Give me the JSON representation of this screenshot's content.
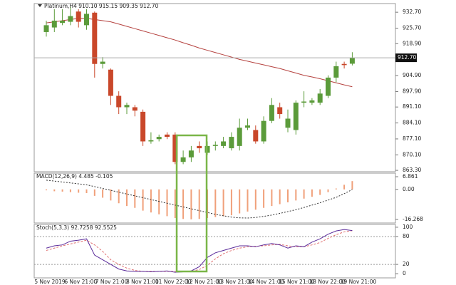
{
  "chart_data": [
    {
      "type": "candlestick",
      "title": "Platinum,H4 910.10 915.15 909.35 912.70",
      "open": [
        924,
        926,
        928,
        928.5,
        933,
        927,
        932.5,
        910,
        907.5,
        896,
        891,
        891,
        889,
        876,
        877,
        879,
        879,
        867,
        869,
        874,
        871,
        874,
        874,
        873,
        874,
        882,
        881,
        876,
        885,
        891,
        882,
        881,
        893,
        893,
        893,
        896,
        904,
        910,
        910.1
      ],
      "high": [
        929,
        934,
        934,
        935,
        934,
        934,
        933,
        913,
        908,
        898,
        893,
        892,
        890,
        880,
        879,
        880,
        880,
        872,
        874,
        876,
        876,
        876,
        878,
        880,
        886,
        886,
        883,
        887,
        895,
        893,
        890,
        894,
        898,
        895,
        899,
        905,
        911,
        911,
        915.15
      ],
      "low": [
        922,
        924,
        927,
        927,
        926,
        925,
        904,
        908,
        892,
        888,
        888,
        887,
        874,
        875,
        876,
        877,
        866,
        866,
        867,
        871,
        870,
        872,
        873,
        872,
        872,
        881,
        875,
        875,
        884,
        886,
        880,
        879,
        891,
        892,
        892,
        895,
        902,
        908,
        909.35
      ],
      "close": [
        927,
        929,
        929,
        931,
        928.5,
        932,
        910,
        911,
        896,
        891,
        892,
        889.5,
        876,
        876.5,
        878,
        878,
        867,
        869,
        872,
        873,
        874,
        874.5,
        876,
        878,
        882,
        883,
        876,
        885,
        892,
        888,
        886,
        893,
        893.5,
        894,
        897,
        904,
        909,
        909.5,
        912.7
      ],
      "up_color": "#5b9b3a",
      "down_color": "#c9472a",
      "overlay": {
        "color": "#b5423f",
        "values": [
          928,
          928.5,
          929,
          929.5,
          930,
          930,
          929.5,
          929,
          928.5,
          927.5,
          926.5,
          925.5,
          924.5,
          923.5,
          922.5,
          921.5,
          920.5,
          919.3,
          918.2,
          917,
          916,
          915,
          914,
          913,
          912,
          911.2,
          910.4,
          909.6,
          908.8,
          908,
          907,
          906,
          905,
          904.3,
          903.5,
          902.6,
          901.7,
          900.8,
          900
        ]
      },
      "last_price": {
        "value": 912.7,
        "label": "912.70"
      },
      "ylim": [
        862.7,
        936.5
      ],
      "yticks": [
        {
          "value": 932.7,
          "label": "932.70"
        },
        {
          "value": 925.7,
          "label": "925.70"
        },
        {
          "value": 918.9,
          "label": "918.90"
        },
        {
          "value": 904.9,
          "label": "904.90"
        },
        {
          "value": 897.9,
          "label": "897.90"
        },
        {
          "value": 891.1,
          "label": "891.10"
        },
        {
          "value": 884.1,
          "label": "884.10"
        },
        {
          "value": 877.1,
          "label": "877.10"
        },
        {
          "value": 870.1,
          "label": "870.10"
        },
        {
          "value": 863.3,
          "label": "863.30"
        }
      ]
    },
    {
      "type": "macd",
      "title": "MACD(12,26,9) 4.485 -0.105",
      "histogram": {
        "color": "#f0a07a",
        "values": [
          -0.5,
          -1,
          -1.2,
          -1.5,
          -1.8,
          -2,
          -3.5,
          -4.5,
          -6,
          -7.5,
          -9,
          -10,
          -11.5,
          -12.5,
          -13.5,
          -14.5,
          -15.5,
          -16,
          -16.2,
          -16,
          -15.5,
          -15,
          -14.5,
          -14,
          -13,
          -12,
          -11,
          -10,
          -9,
          -8,
          -7,
          -6,
          -5,
          -4,
          -3,
          -1.5,
          0.5,
          2.5,
          4.485
        ]
      },
      "signal": {
        "color": "#333333",
        "values": [
          5,
          4.5,
          4,
          3.5,
          3,
          2.5,
          1.5,
          0.5,
          -0.5,
          -1.5,
          -2.5,
          -3.5,
          -4.5,
          -5.5,
          -6.5,
          -7.5,
          -8.5,
          -9.5,
          -10.5,
          -11.5,
          -12.5,
          -13.5,
          -14.3,
          -15,
          -15.4,
          -15.5,
          -15.2,
          -14.6,
          -13.9,
          -13,
          -12,
          -11,
          -9.8,
          -8.5,
          -7.2,
          -5.8,
          -4.3,
          -2.3,
          -0.105
        ]
      },
      "ylim": [
        -18.2,
        8.8
      ],
      "yticks": [
        6.861,
        {
          "value": 0,
          "label": "0.00"
        },
        -16.268
      ]
    },
    {
      "type": "stochastic",
      "title": "Stoch(5,3,3) 92.7258 92.5525",
      "main": {
        "color": "#5a2a9a",
        "values": [
          55,
          60,
          62,
          70,
          72,
          75,
          40,
          30,
          20,
          10,
          6,
          5,
          5,
          4,
          5,
          6,
          3,
          4,
          6,
          15,
          35,
          45,
          50,
          55,
          60,
          60,
          58,
          62,
          65,
          62,
          55,
          60,
          58,
          68,
          75,
          85,
          92,
          95,
          92.7258
        ]
      },
      "signal": {
        "color": "#e07070",
        "values": [
          50,
          55,
          60,
          64,
          68,
          72,
          62,
          48,
          30,
          20,
          12,
          7,
          5,
          5,
          5,
          5,
          5,
          5,
          5,
          9,
          18,
          32,
          43,
          50,
          55,
          58,
          59,
          60,
          62,
          63,
          60,
          58,
          58,
          62,
          67,
          76,
          84,
          90,
          92.5525
        ]
      },
      "level_lines": true,
      "ylim": [
        -9,
        106
      ],
      "yticks": [
        100,
        80,
        20,
        0
      ],
      "xtick_labels": [
        "5 Nov 2019",
        "6 Nov 21:00",
        "7 Nov 21:00",
        "8 Nov 21:00",
        "11 Nov 22:00",
        "12 Nov 21:00",
        "13 Nov 21:00",
        "14 Nov 21:00",
        "15 Nov 21:00",
        "18 Nov 22:00",
        "19 Nov 21:00"
      ]
    }
  ]
}
